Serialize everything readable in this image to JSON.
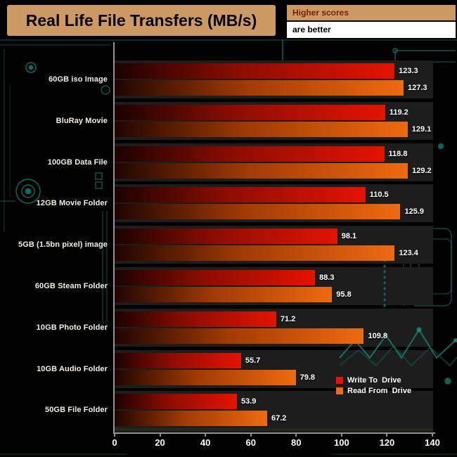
{
  "title": "Real Life File Transfers (MB/s)",
  "note": {
    "line1": "Higher scores",
    "line2": "are better"
  },
  "chart_data": {
    "type": "bar",
    "orientation": "horizontal",
    "title": "Real Life File Transfers (MB/s)",
    "categories": [
      "60GB iso Image",
      "BluRay Movie",
      "100GB Data File",
      "12GB Movie Folder",
      "5GB (1.5bn pixel) image",
      "60GB Steam Folder",
      "10GB Photo Folder",
      "10GB Audio Folder",
      "50GB File Folder"
    ],
    "series": [
      {
        "name": "Write To  Drive",
        "color_start": "#1b0200",
        "color_mid": "#8e0d00",
        "color_end": "#e51300",
        "values": [
          123.3,
          119.2,
          118.8,
          110.5,
          98.1,
          88.3,
          71.2,
          55.7,
          53.9
        ]
      },
      {
        "name": "Read From  Drive",
        "color_start": "#200400",
        "color_mid": "#a03a04",
        "color_end": "#ef6a10",
        "values": [
          127.3,
          129.1,
          129.2,
          125.9,
          123.4,
          95.8,
          109.8,
          79.8,
          67.2
        ]
      }
    ],
    "xlim": [
      0,
      140
    ],
    "xticks": [
      0,
      20,
      40,
      60,
      80,
      100,
      120,
      140
    ],
    "xlabel": "",
    "ylabel": "",
    "grid": false,
    "legend_position": "bottom-right",
    "value_labels": true
  },
  "colors": {
    "background": "#000000",
    "panel_tan": "#cc9a62",
    "note_text": "#7b2000",
    "circuit_teal": "#0e7c6e",
    "band_background": "#1d1d1d",
    "axis": "#969696",
    "write_bar": "#e51300",
    "read_bar": "#ef6a10"
  }
}
